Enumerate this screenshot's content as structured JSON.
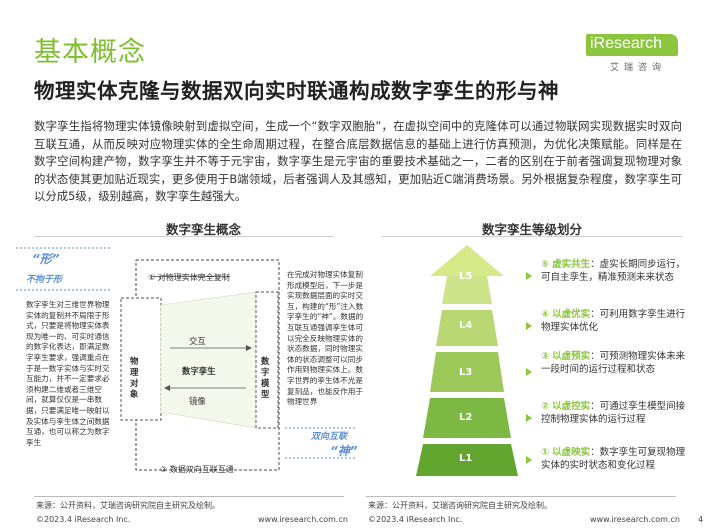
{
  "header": {
    "title": "基本概念",
    "subtitle": "物理实体克隆与数据双向实时联通构成数字孪生的形与神",
    "logo_main": "iResearch",
    "logo_sub": "艾瑞咨询"
  },
  "intro": "数字孪生指将物理实体镜像映射到虚拟空间，生成一个“数字双胞胎”，在虚拟空间中的克隆体可以通过物联网实现数据实时双向互联互通，从而反映对应物理实体的全生命周期过程，在整合底层数据信息的基础上进行仿真预测，为优化决策赋能。同样是在数字空间构建产物，数字孪生并不等于元宇宙，数字孪生是元宇宙的重要技术基础之一，二者的区别在于前者强调复现物理对象的状态使其更加贴近现实，更多使用于B端领域，后者强调人及其感知，更加贴近C端消费场景。另外根据复杂程度，数字孪生可以分成5级，级别越高，数字孪生越强大。",
  "left_panel": {
    "title": "数字孪生概念",
    "xing": "“形”",
    "xing_sub": "不拘于形",
    "xing_text": "数字孪生对三维世界物理实体的复制并不局限于形式，只要是将物理实体表现为唯一的、可实时通信的数字化表达，即满足数字孪生要求，强调重点在于是一数字实体与实时交互能力，并不一定要求必须构建二维或者三维空间，就算仅仅是一串数据，只要满足唯一映射以及实体与孪生体之间数据互通，也可以称之为数字孪生",
    "copy_label": "① 对物理实体完全复制",
    "exchange_label": "② 数据双向互联互通",
    "physical_label": "物理对象",
    "model_label": "数字模型",
    "arrow_interact": "交互",
    "arrow_twin": "数字孪生",
    "arrow_mirror": "镜像",
    "shen_text": "在完成对物理实体复制形成模型后，下一步是实现数据层面的实时交互，构建的“形”注入数字孪生的“神”。数据的互联互通强调孪生体可以完全反映物理实体的状态数据，同时物理实体的状态调整可以同步作用到物理实体上。数字世界的孪生体不光是复刻品，也能反作用于物理世界",
    "shen_sub": "双向互联",
    "shen": "“神”",
    "source": "来源：公开资料，艾瑞咨询研究院自主研究及绘制。"
  },
  "right_panel": {
    "title": "数字孪生等级划分",
    "levels": [
      {
        "badge": "L5",
        "num": "⑤",
        "name": "虚实共生",
        "desc": "：虚实长期同步运行，可自主孪生，精准预测未来状态"
      },
      {
        "badge": "L4",
        "num": "④",
        "name": "以虚优实",
        "desc": "：可利用数字孪生进行物理实体优化"
      },
      {
        "badge": "L3",
        "num": "③",
        "name": "以虚预实",
        "desc": "：可预测物理实体未来一段时间的运行过程和状态"
      },
      {
        "badge": "L2",
        "num": "②",
        "name": "以虚控实",
        "desc": "：可通过孪生模型间接控制物理实体的运行过程"
      },
      {
        "badge": "L1",
        "num": "①",
        "name": "以虚映实",
        "desc": "：数字孪生可复现物理实体的实时状态和变化过程"
      }
    ],
    "source": "来源：公开资料，艾瑞咨询研究院自主研究及绘制。"
  },
  "footer": {
    "left_copyright": "©2023.4 iResearch Inc.",
    "left_url": "www.iresearch.com.cn",
    "right_copyright": "©2023.4 iResearch Inc.",
    "right_url": "www.iresearch.com.cn",
    "page": "4"
  },
  "colors": {
    "brand_green": "#8cc63f",
    "accent_blue": "#5a8fd6",
    "pyramid_top": "#d8e98a",
    "pyramid_bottom": "#5aa02c"
  }
}
